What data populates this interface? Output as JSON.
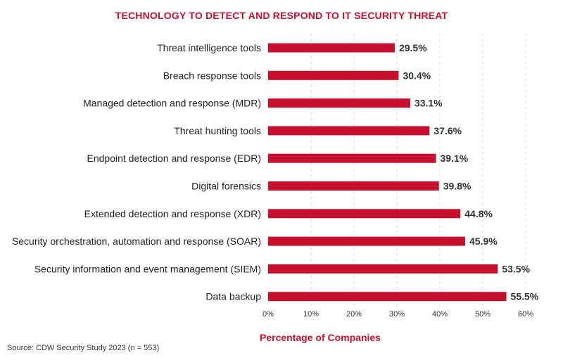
{
  "chart_data": {
    "type": "bar",
    "orientation": "horizontal",
    "title": "TECHNOLOGY TO DETECT AND RESPOND TO IT SECURITY THREAT",
    "xlabel": "Percentage of Companies",
    "ylabel": "",
    "xlim": [
      0,
      60
    ],
    "ticks": [
      0,
      10,
      20,
      30,
      40,
      50,
      60
    ],
    "tick_labels": [
      "0%",
      "10%",
      "20%",
      "30%",
      "40%",
      "50%",
      "60%"
    ],
    "grid": true,
    "categories": [
      "Threat intelligence tools",
      "Breach response tools",
      "Managed detection and response (MDR)",
      "Threat hunting tools",
      "Endpoint detection and response (EDR)",
      "Digital forensics",
      "Extended detection and response (XDR)",
      "Security orchestration, automation and response (SOAR)",
      "Security information and event management (SIEM)",
      "Data backup"
    ],
    "values": [
      29.5,
      30.4,
      33.1,
      37.6,
      39.1,
      39.8,
      44.8,
      45.9,
      53.5,
      55.5
    ],
    "value_labels": [
      "29.5%",
      "30.4%",
      "33.1%",
      "37.6%",
      "39.1%",
      "39.8%",
      "44.8%",
      "45.9%",
      "53.5%",
      "55.5%"
    ],
    "source": "Source: CDW Security Study 2023 (n = 553)",
    "bar_color": "#c8102e"
  }
}
